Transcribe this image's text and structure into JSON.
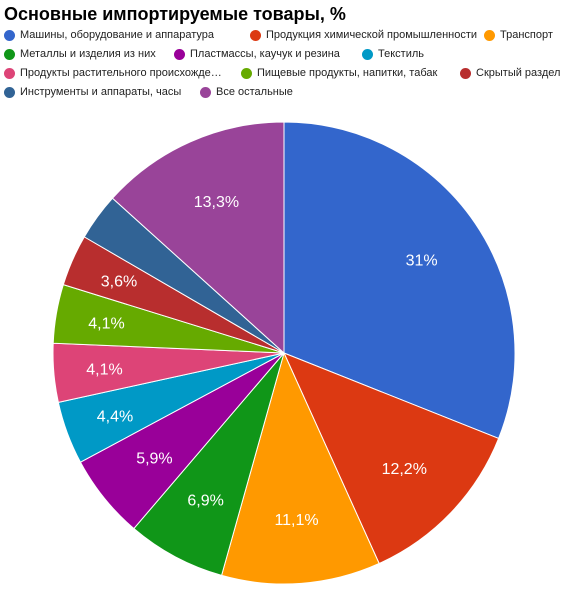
{
  "chart_data": {
    "type": "pie",
    "title": "Основные импортируемые товары, %",
    "legend_position": "top",
    "slices": [
      {
        "name": "Машины, оборудование и аппаратура",
        "value": 31,
        "label": "31%",
        "color": "#3366cc",
        "icon": "circle-marker-icon"
      },
      {
        "name": "Продукция химической промышленности",
        "value": 12.2,
        "label": "12,2%",
        "color": "#dc3912",
        "icon": "circle-marker-icon"
      },
      {
        "name": "Транспорт",
        "value": 11.1,
        "label": "11,1%",
        "color": "#ff9900",
        "icon": "circle-marker-icon"
      },
      {
        "name": "Металлы и изделия из них",
        "value": 6.9,
        "label": "6,9%",
        "color": "#109618",
        "icon": "circle-marker-icon"
      },
      {
        "name": "Пластмассы, каучук и резина",
        "value": 5.9,
        "label": "5,9%",
        "color": "#990099",
        "icon": "circle-marker-icon"
      },
      {
        "name": "Текстиль",
        "value": 4.4,
        "label": "4,4%",
        "color": "#0099c6",
        "icon": "circle-marker-icon"
      },
      {
        "name": "Продукты растительного происхожде…",
        "value": 4.1,
        "label": "4,1%",
        "color": "#dd4477",
        "icon": "circle-marker-icon"
      },
      {
        "name": "Пищевые продукты, напитки, табак",
        "value": 4.1,
        "label": "4,1%",
        "color": "#66aa00",
        "icon": "circle-marker-icon"
      },
      {
        "name": "Скрытый раздел",
        "value": 3.6,
        "label": "3,6%",
        "color": "#b82e2e",
        "icon": "circle-marker-icon"
      },
      {
        "name": "Инструменты и аппараты, часы",
        "value": 3.3,
        "label": "",
        "color": "#316395",
        "icon": "circle-marker-icon"
      },
      {
        "name": "Все остальные",
        "value": 13.3,
        "label": "13,3%",
        "color": "#994499",
        "icon": "circle-marker-icon"
      }
    ]
  }
}
